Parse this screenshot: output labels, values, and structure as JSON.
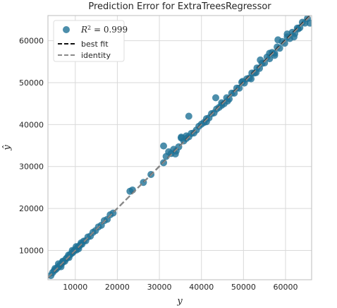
{
  "chart_data": {
    "type": "scatter",
    "title": "Prediction Error for ExtraTreesRegressor",
    "xlabel": "y",
    "ylabel": "ŷ",
    "xlim": [
      3500,
      66200
    ],
    "ylim": [
      3000,
      66000
    ],
    "xticks": [
      10000,
      20000,
      30000,
      40000,
      50000,
      60000
    ],
    "yticks": [
      10000,
      20000,
      30000,
      40000,
      50000,
      60000
    ],
    "grid": true,
    "legend_position": "upper-left",
    "legend": {
      "r2_label": "R",
      "r2_sup": "2",
      "r2_value": " = 0.999",
      "best_fit_label": "best fit",
      "identity_label": "identity"
    },
    "colors": {
      "points": "#1f7296",
      "best_fit": "#111111",
      "identity": "#8a8a8a",
      "grid": "#d9d9d9",
      "frame": "#bdbdbd"
    },
    "series": [
      {
        "type": "points",
        "x": [
          4200,
          4600,
          5000,
          5400,
          5800,
          6100,
          6400,
          6800,
          7100,
          7500,
          7800,
          8100,
          8500,
          8800,
          9100,
          9400,
          9700,
          10000,
          10300,
          10600,
          10900,
          11200,
          11600,
          12000,
          12500,
          13000,
          13600,
          14200,
          14800,
          15500,
          16200,
          16900,
          17600,
          18300,
          19000,
          6000,
          7000,
          8400,
          9300,
          10200,
          10800,
          11400,
          5200,
          6600,
          23000,
          23600,
          26200,
          28000,
          31000,
          31600,
          32200,
          32800,
          33400,
          34000,
          34600,
          35200,
          35800,
          36400,
          37000,
          37600,
          38200,
          38800,
          39400,
          40000,
          40600,
          41200,
          41800,
          42400,
          43000,
          43600,
          44200,
          44800,
          45400,
          46000,
          46600,
          47200,
          47800,
          48400,
          49000,
          49600,
          50200,
          50800,
          51400,
          52000,
          52600,
          53200,
          53800,
          54400,
          55000,
          55600,
          56200,
          56800,
          57400,
          58000,
          58600,
          59200,
          59800,
          60400,
          61000,
          61600,
          62200,
          62800,
          63400,
          64000,
          64600,
          65200,
          65800,
          37000,
          36400,
          31000,
          33800,
          35200,
          43400,
          44800,
          49800,
          51800,
          54000,
          57400,
          58200,
          60400,
          62000,
          63000,
          53000,
          56200,
          41200,
          46200
        ],
        "y": [
          4000,
          4700,
          5200,
          5500,
          5900,
          6200,
          6500,
          6900,
          7300,
          7400,
          8000,
          8300,
          8300,
          9000,
          9300,
          9500,
          9900,
          10200,
          10100,
          10800,
          11000,
          11300,
          11500,
          12200,
          12300,
          13200,
          13400,
          14300,
          14700,
          15600,
          16000,
          17100,
          17400,
          18500,
          18900,
          6800,
          7400,
          8900,
          10000,
          10900,
          10400,
          11800,
          5700,
          6100,
          24100,
          24400,
          26200,
          28100,
          34900,
          32400,
          33500,
          33100,
          34100,
          33700,
          34700,
          37000,
          36100,
          37300,
          37100,
          37900,
          38000,
          38700,
          39600,
          40100,
          40500,
          41400,
          41600,
          42600,
          42800,
          43700,
          44100,
          45200,
          45000,
          46400,
          46100,
          47500,
          47500,
          48700,
          48700,
          50100,
          49900,
          50900,
          51100,
          52300,
          52300,
          53500,
          53400,
          54600,
          54700,
          56100,
          55700,
          57200,
          57000,
          58500,
          58200,
          59800,
          59400,
          60900,
          60500,
          62000,
          61700,
          63000,
          63100,
          64400,
          64200,
          65300,
          64200,
          42000,
          36700,
          30900,
          33000,
          36800,
          46400,
          44600,
          50300,
          50900,
          55400,
          56500,
          60200,
          61600,
          60900,
          62800,
          52400,
          57000,
          40700,
          45600
        ]
      },
      {
        "type": "line",
        "name": "best fit",
        "x": [
          3500,
          66200
        ],
        "y": [
          3450,
          66400
        ]
      },
      {
        "type": "line",
        "name": "identity",
        "x": [
          3500,
          66200
        ],
        "y": [
          3500,
          66200
        ]
      }
    ]
  }
}
